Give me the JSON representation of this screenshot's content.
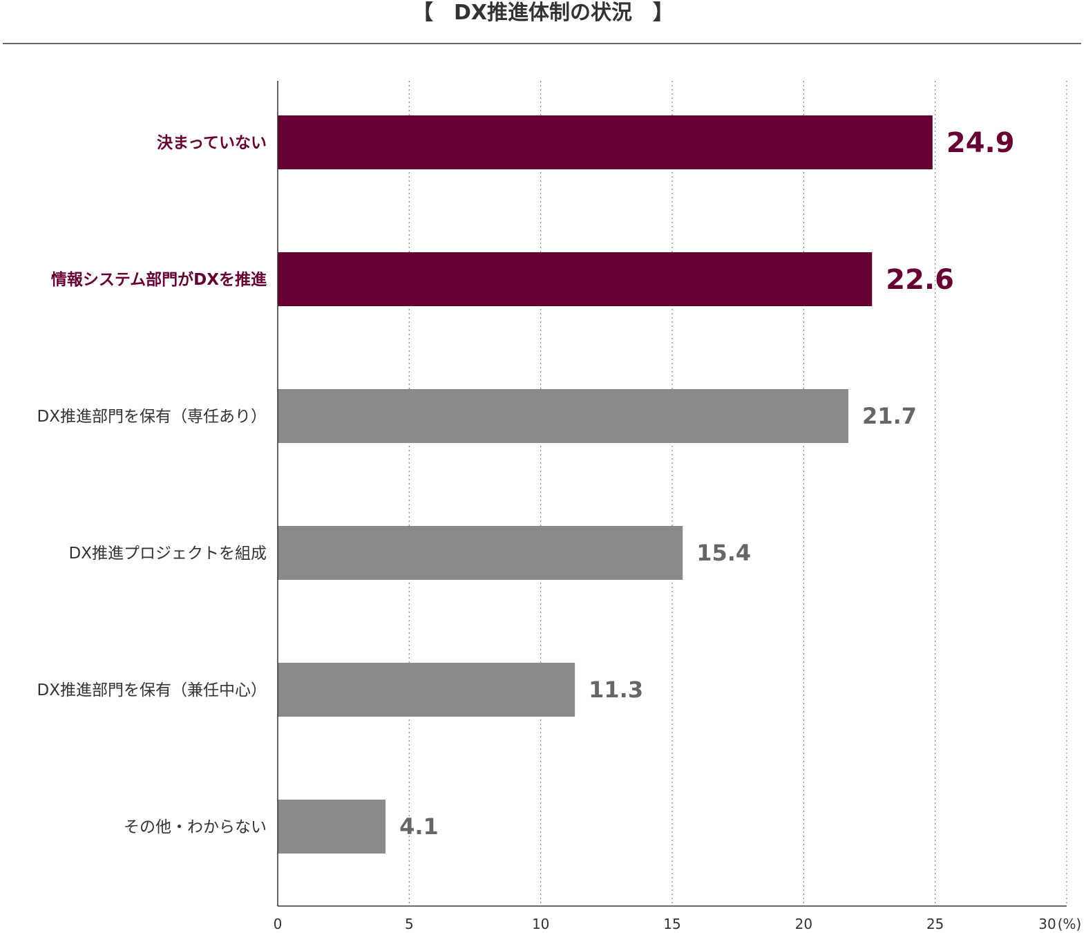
{
  "chart_data": {
    "type": "bar",
    "orientation": "horizontal",
    "title": "【　DX推進体制の状況　】",
    "categories": [
      "決まっていない",
      "情報システム部門がDXを推進",
      "DX推進部門を保有（専任あり）",
      "DX推進プロジェクトを組成",
      "DX推進部門を保有（兼任中心）",
      "その他・わからない"
    ],
    "values": [
      24.9,
      22.6,
      21.7,
      15.4,
      11.3,
      4.1
    ],
    "value_labels": [
      "24.9",
      "22.6",
      "21.7",
      "15.4",
      "11.3",
      "4.1"
    ],
    "highlighted": [
      true,
      true,
      false,
      false,
      false,
      false
    ],
    "xlim": [
      0,
      30
    ],
    "x_ticks": [
      "0",
      "5",
      "10",
      "15",
      "20",
      "25",
      "30"
    ],
    "x_unit": "(%)",
    "grid": true,
    "colors": {
      "highlight": "#660033",
      "normal": "#8a8a8a",
      "axis": "#333333",
      "grid": "#888888",
      "label_normal": "#333333",
      "value_normal": "#666666"
    }
  }
}
